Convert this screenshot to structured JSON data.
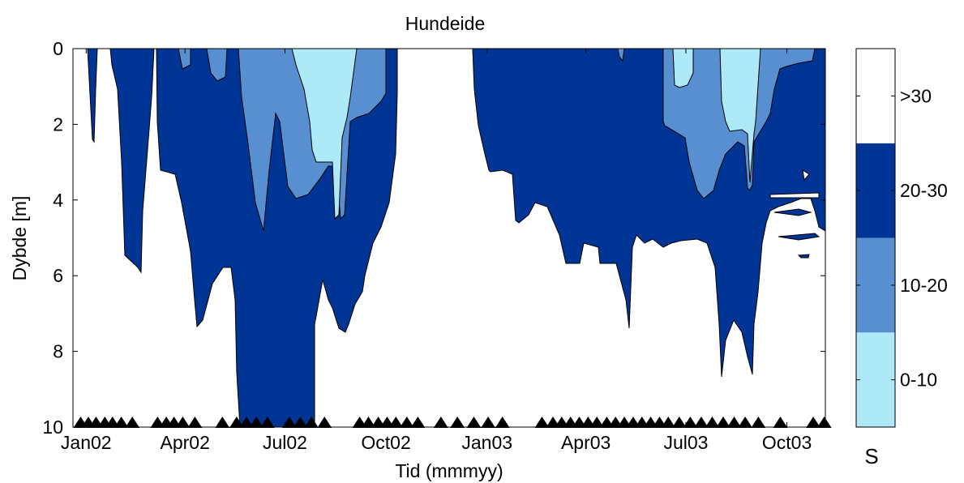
{
  "chart_data": {
    "type": "contour",
    "title": "Hundeide",
    "xlabel": "Tid (mmmyy)",
    "ylabel": "Dybde [m]",
    "xlim": [
      "2001-12-20",
      "2003-11-05"
    ],
    "ylim": [
      0,
      10
    ],
    "y_reversed": true,
    "x_ticks": [
      "Jan02",
      "Apr02",
      "Jul02",
      "Oct02",
      "Jan03",
      "Apr03",
      "Jul03",
      "Oct03"
    ],
    "y_ticks": [
      0,
      2,
      4,
      6,
      8,
      10
    ],
    "colorbar": {
      "label": "S",
      "levels": [
        {
          "label": "0-10",
          "color": "#aee9f7"
        },
        {
          "label": "10-20",
          "color": "#588fd0"
        },
        {
          "label": "20-30",
          "color": "#013595"
        },
        {
          "label": ">30",
          "color": "#ffffff"
        }
      ]
    },
    "sampling_dates": [
      "2001-12-27",
      "2002-01-03",
      "2002-01-10",
      "2002-01-18",
      "2002-01-25",
      "2002-02-02",
      "2002-02-12",
      "2002-03-07",
      "2002-03-15",
      "2002-03-22",
      "2002-03-30",
      "2002-04-10",
      "2002-05-05",
      "2002-05-18",
      "2002-05-27",
      "2002-06-05",
      "2002-06-15",
      "2002-07-05",
      "2002-07-15",
      "2002-07-25",
      "2002-08-06",
      "2002-09-07",
      "2002-09-15",
      "2002-09-24",
      "2002-10-02",
      "2002-10-10",
      "2002-10-20",
      "2002-10-30",
      "2002-11-20",
      "2002-12-05",
      "2002-12-20",
      "2003-01-02",
      "2003-01-15",
      "2003-02-20",
      "2003-03-02",
      "2003-03-10",
      "2003-03-18",
      "2003-03-26",
      "2003-04-03",
      "2003-04-11",
      "2003-04-20",
      "2003-04-28",
      "2003-05-06",
      "2003-05-14",
      "2003-05-22",
      "2003-05-30",
      "2003-06-07",
      "2003-06-15",
      "2003-06-25",
      "2003-07-05",
      "2003-07-15",
      "2003-07-25",
      "2003-08-04",
      "2003-08-14",
      "2003-08-24",
      "2003-09-05",
      "2003-09-25",
      "2003-10-25",
      "2003-11-04"
    ],
    "regions": [
      {
        "level": "20-30",
        "date_range": [
          "2001-12-25",
          "2002-01-04"
        ],
        "depth_range": [
          0,
          2.5
        ]
      },
      {
        "level": "20-30",
        "date_range": [
          "2002-01-14",
          "2002-02-06"
        ],
        "depth_range": [
          0,
          6.0
        ]
      },
      {
        "level": "20-30",
        "date_range": [
          "2002-02-23",
          "2002-10-01"
        ],
        "depth_range": [
          0,
          10
        ]
      },
      {
        "level": "10-20",
        "date_range": [
          "2002-03-05",
          "2002-07-29"
        ],
        "depth_range": [
          0,
          5.0
        ]
      },
      {
        "level": "0-10",
        "date_range": [
          "2002-07-14",
          "2002-08-01"
        ],
        "depth_range": [
          0,
          4.5
        ]
      },
      {
        "level": "20-30",
        "date_range": [
          "2002-12-25",
          "2003-11-05"
        ],
        "depth_range": [
          0,
          8.8
        ]
      },
      {
        "level": "10-20",
        "date_range": [
          "2003-04-28",
          "2003-10-27"
        ],
        "depth_range": [
          0,
          4.2
        ]
      },
      {
        "level": "0-10",
        "date_range": [
          "2003-07-15",
          "2003-09-12"
        ],
        "depth_range": [
          0,
          3.8
        ]
      }
    ]
  }
}
